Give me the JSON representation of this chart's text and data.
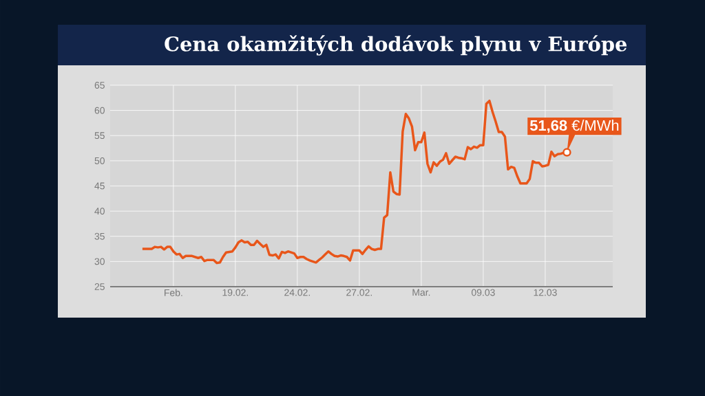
{
  "chart_data": {
    "type": "line",
    "title": "Cena okamžitých dodávok plynu v Európe",
    "categories": [
      null,
      null,
      null,
      null,
      null,
      null,
      null,
      null,
      null,
      null,
      "Feb.",
      null,
      null,
      null,
      null,
      null,
      null,
      null,
      null,
      null,
      null,
      null,
      null,
      null,
      null,
      null,
      null,
      null,
      null,
      null,
      "19.02.",
      null,
      null,
      null,
      null,
      null,
      null,
      null,
      null,
      null,
      null,
      null,
      null,
      null,
      null,
      null,
      null,
      null,
      null,
      null,
      "24.02.",
      null,
      null,
      null,
      null,
      null,
      null,
      null,
      null,
      null,
      null,
      null,
      null,
      null,
      null,
      null,
      null,
      null,
      null,
      null,
      "27.02.",
      null,
      null,
      null,
      null,
      null,
      null,
      null,
      null,
      null,
      null,
      null,
      null,
      null,
      null,
      null,
      null,
      null,
      null,
      null,
      "Mar.",
      null,
      null,
      null,
      null,
      null,
      null,
      null,
      null,
      null,
      null,
      null,
      null,
      null,
      null,
      null,
      null,
      null,
      null,
      null,
      "09.03",
      null,
      null,
      null,
      null,
      null,
      null,
      null,
      null,
      null,
      null,
      null,
      null,
      null,
      null,
      null,
      null,
      null,
      null,
      null,
      "12.03",
      null,
      null,
      null,
      null,
      null,
      null,
      null
    ],
    "values": [
      32.5,
      32.5,
      32.5,
      32.5,
      32.9,
      32.8,
      32.9,
      32.4,
      32.9,
      32.9,
      32.0,
      31.4,
      31.5,
      30.7,
      31.1,
      31.1,
      31.1,
      30.9,
      30.7,
      30.9,
      30.1,
      30.3,
      30.3,
      30.3,
      29.7,
      29.8,
      30.9,
      31.8,
      31.9,
      32.0,
      32.8,
      33.8,
      34.2,
      33.8,
      33.9,
      33.3,
      33.3,
      34.1,
      33.5,
      32.9,
      33.3,
      31.3,
      31.2,
      31.4,
      30.6,
      31.9,
      31.7,
      32.0,
      31.8,
      31.6,
      30.7,
      30.9,
      30.9,
      30.5,
      30.2,
      30.0,
      29.8,
      30.3,
      30.8,
      31.4,
      32.0,
      31.5,
      31.1,
      31.0,
      31.2,
      31.1,
      30.9,
      30.2,
      32.2,
      32.2,
      32.2,
      31.5,
      32.3,
      33.0,
      32.5,
      32.3,
      32.5,
      32.5,
      38.7,
      39.2,
      47.7,
      43.9,
      43.4,
      43.3,
      55.8,
      59.3,
      58.4,
      56.8,
      52.1,
      53.7,
      53.7,
      55.6,
      49.4,
      47.7,
      49.7,
      49.0,
      49.8,
      50.2,
      51.5,
      49.4,
      50.1,
      50.8,
      50.6,
      50.5,
      50.3,
      52.7,
      52.3,
      52.8,
      52.6,
      53.1,
      53.1,
      61.3,
      61.9,
      59.7,
      57.8,
      55.7,
      55.7,
      54.8,
      48.3,
      48.8,
      48.6,
      46.9,
      45.5,
      45.5,
      45.5,
      46.4,
      49.9,
      49.6,
      49.6,
      48.9,
      49.0,
      49.2,
      51.8,
      50.9,
      51.3,
      51.4,
      51.6,
      51.68
    ],
    "color": "#e8561a",
    "ylim": [
      25,
      65
    ],
    "yticks": [
      25,
      30,
      35,
      40,
      45,
      50,
      55,
      60,
      65
    ],
    "grid": true,
    "annotations": [
      "**51,68** €/MWh"
    ]
  }
}
